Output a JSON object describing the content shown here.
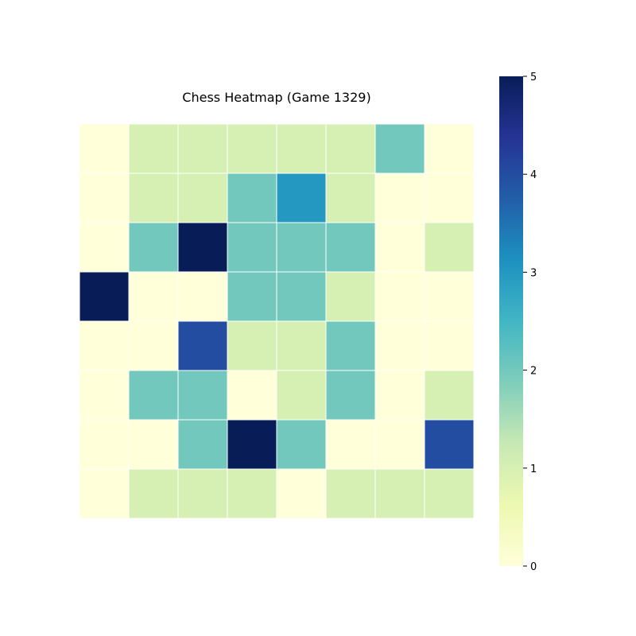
{
  "chart_data": {
    "type": "heatmap",
    "title": "Chess Heatmap (Game 1329)",
    "xlabel": "",
    "ylabel": "",
    "rows": 8,
    "cols": 8,
    "values": [
      [
        0,
        1,
        1,
        1,
        1,
        1,
        2,
        0
      ],
      [
        0,
        1,
        1,
        2,
        3,
        1,
        0,
        0
      ],
      [
        0,
        2,
        5,
        2,
        2,
        2,
        0,
        1
      ],
      [
        5,
        0,
        0,
        2,
        2,
        1,
        0,
        0
      ],
      [
        0,
        0,
        4,
        1,
        1,
        2,
        0,
        0
      ],
      [
        0,
        2,
        2,
        0,
        1,
        2,
        0,
        1
      ],
      [
        0,
        0,
        2,
        5,
        2,
        0,
        0,
        4
      ],
      [
        0,
        1,
        1,
        1,
        0,
        1,
        1,
        1
      ]
    ],
    "colorbar": {
      "min": 0,
      "max": 5,
      "ticks": [
        "0",
        "1",
        "2",
        "3",
        "4",
        "5"
      ]
    },
    "colormap": "YlGnBu",
    "colormap_stops": [
      "#ffffd9",
      "#edf8b1",
      "#c7e9b4",
      "#7fcdbb",
      "#41b6c4",
      "#1d91c0",
      "#225ea8",
      "#253494",
      "#081d58"
    ],
    "cell_border_color": "#ffffff",
    "grid": false,
    "legend": "colorbar-right"
  }
}
